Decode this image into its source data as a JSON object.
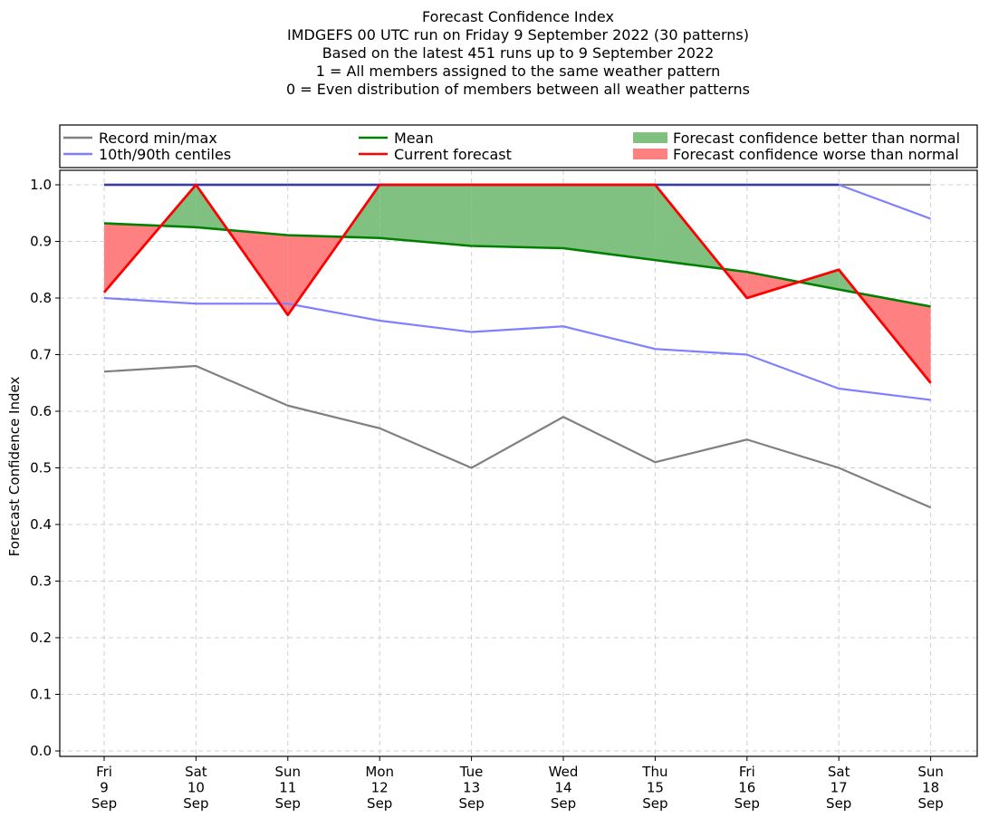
{
  "chart_data": {
    "type": "line",
    "title_lines": [
      "Forecast Confidence Index",
      "IMDGEFS 00 UTC run on Friday 9 September 2022 (30 patterns)",
      "Based on the latest 451 runs up to 9 September 2022",
      "1 = All members assigned to the same weather pattern",
      "0 = Even distribution of members between all weather patterns"
    ],
    "xlabel": "",
    "ylabel": "Forecast Confidence Index",
    "ylim": [
      0,
      1
    ],
    "yticks": [
      "0.0",
      "0.1",
      "0.2",
      "0.3",
      "0.4",
      "0.5",
      "0.6",
      "0.7",
      "0.8",
      "0.9",
      "1.0"
    ],
    "categories": [
      [
        "Fri",
        "9",
        "Sep"
      ],
      [
        "Sat",
        "10",
        "Sep"
      ],
      [
        "Sun",
        "11",
        "Sep"
      ],
      [
        "Mon",
        "12",
        "Sep"
      ],
      [
        "Tue",
        "13",
        "Sep"
      ],
      [
        "Wed",
        "14",
        "Sep"
      ],
      [
        "Thu",
        "15",
        "Sep"
      ],
      [
        "Fri",
        "16",
        "Sep"
      ],
      [
        "Sat",
        "17",
        "Sep"
      ],
      [
        "Sun",
        "18",
        "Sep"
      ]
    ],
    "grid": true,
    "legend_placement": "top",
    "legend": [
      {
        "label": "Record min/max",
        "kind": "line",
        "color": "#808080"
      },
      {
        "label": "10th/90th centiles",
        "kind": "line",
        "color": "#8080ff"
      },
      {
        "label": "Mean",
        "kind": "line",
        "color": "#008000"
      },
      {
        "label": "Current forecast",
        "kind": "line",
        "color": "#ff0000"
      },
      {
        "label": "Forecast confidence better than normal",
        "kind": "patch",
        "color": "#80c080"
      },
      {
        "label": "Forecast confidence worse than normal",
        "kind": "patch",
        "color": "#ff8080"
      }
    ],
    "series": [
      {
        "role": "record_max",
        "color": "#808080",
        "values": [
          1.0,
          1.0,
          1.0,
          1.0,
          1.0,
          1.0,
          1.0,
          1.0,
          1.0,
          1.0
        ]
      },
      {
        "role": "record_min",
        "color": "#808080",
        "values": [
          0.67,
          0.68,
          0.61,
          0.57,
          0.5,
          0.59,
          0.51,
          0.55,
          0.5,
          0.43
        ]
      },
      {
        "role": "centile_90",
        "color": "#8080ff",
        "values": [
          1.0,
          1.0,
          1.0,
          1.0,
          1.0,
          1.0,
          1.0,
          1.0,
          1.0,
          0.94
        ]
      },
      {
        "role": "centile_10",
        "color": "#8080ff",
        "values": [
          0.8,
          0.79,
          0.79,
          0.76,
          0.74,
          0.75,
          0.71,
          0.7,
          0.64,
          0.62
        ]
      },
      {
        "role": "mean",
        "color": "#008000",
        "values": [
          0.932,
          0.925,
          0.911,
          0.906,
          0.892,
          0.888,
          0.867,
          0.846,
          0.815,
          0.785
        ]
      },
      {
        "role": "current",
        "color": "#ff0000",
        "values": [
          0.81,
          1.0,
          0.77,
          1.0,
          1.0,
          1.0,
          1.0,
          0.8,
          0.85,
          0.65
        ]
      }
    ]
  }
}
